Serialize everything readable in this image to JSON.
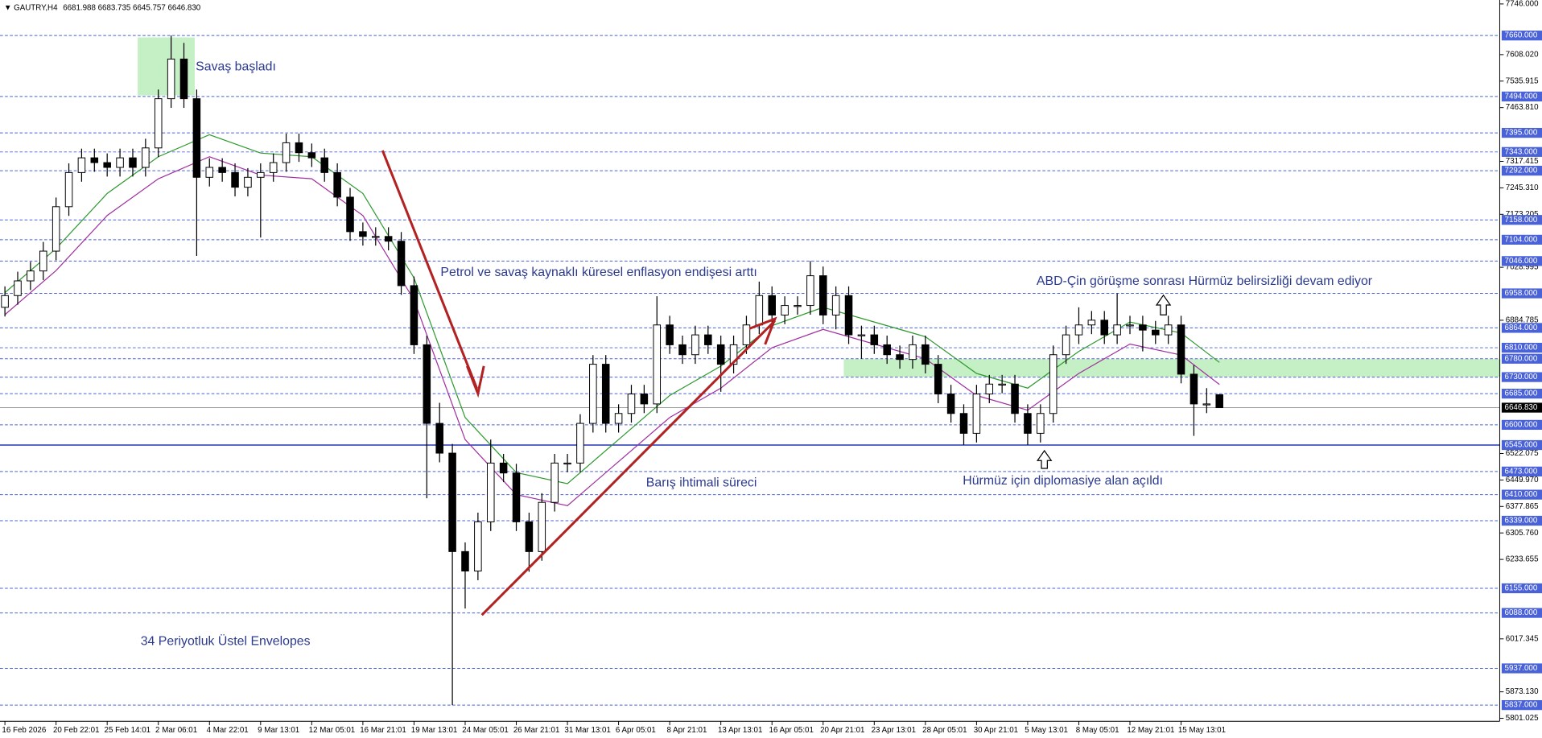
{
  "chart_data": {
    "type": "candlestick",
    "title": "GAUTRY,H4",
    "header_values": "6681.988 6683.735 6645.757 6646.830",
    "categories": [
      "16 Feb 2026",
      null,
      null,
      null,
      "20 Feb 22:01",
      null,
      null,
      null,
      "25 Feb 14:01",
      null,
      null,
      null,
      "2 Mar 06:01",
      null,
      null,
      null,
      "4 Mar 22:01",
      null,
      null,
      null,
      "9 Mar 13:01",
      null,
      null,
      null,
      "12 Mar 05:01",
      null,
      null,
      null,
      "16 Mar 21:01",
      null,
      null,
      null,
      "19 Mar 13:01",
      null,
      null,
      null,
      "24 Mar 05:01",
      null,
      null,
      null,
      "26 Mar 21:01",
      null,
      null,
      null,
      "31 Mar 13:01",
      null,
      null,
      null,
      "6 Apr 05:01",
      null,
      null,
      null,
      "8 Apr 21:01",
      null,
      null,
      null,
      "13 Apr 13:01",
      null,
      null,
      null,
      "16 Apr 05:01",
      null,
      null,
      null,
      "20 Apr 21:01",
      null,
      null,
      null,
      "23 Apr 13:01",
      null,
      null,
      null,
      "28 Apr 05:01",
      null,
      null,
      null,
      "30 Apr 21:01",
      null,
      null,
      null,
      "5 May 13:01",
      null,
      null,
      null,
      "8 May 05:01",
      null,
      null,
      null,
      "12 May 21:01",
      null,
      null,
      null,
      "15 May 13:01",
      null,
      null,
      null
    ],
    "open": [
      6920,
      6952,
      6992,
      7019,
      7073,
      7194,
      7287,
      7327,
      7314,
      7301,
      7327,
      7301,
      7354,
      7488,
      7596,
      7488,
      7274,
      7301,
      7287,
      7247,
      7274,
      7287,
      7314,
      7368,
      7341,
      7327,
      7287,
      7220,
      7126,
      7113,
      7113,
      7100,
      6979,
      6818,
      6604,
      6523,
      6255,
      6202,
      6336,
      6496,
      6469,
      6336,
      6255,
      6389,
      6496,
      6496,
      6604,
      6765,
      6604,
      6631,
      6684,
      6657,
      6872,
      6818,
      6791,
      6845,
      6818,
      6765,
      6818,
      6872,
      6952,
      6899,
      6925,
      6925,
      7006,
      6899,
      6952,
      6845,
      6845,
      6818,
      6791,
      6778,
      6818,
      6765,
      6684,
      6631,
      6577,
      6684,
      6711,
      6711,
      6631,
      6577,
      6631,
      6791,
      6845,
      6872,
      6885,
      6845,
      6872,
      6872,
      6858,
      6845,
      6872,
      6738,
      6657,
      6681.988
    ],
    "high": [
      6977,
      7017,
      7044,
      7098,
      7219,
      7312,
      7352,
      7352,
      7339,
      7352,
      7352,
      7379,
      7513,
      7660,
      7640,
      7513,
      7326,
      7326,
      7312,
      7299,
      7312,
      7339,
      7393,
      7393,
      7366,
      7352,
      7312,
      7245,
      7151,
      7138,
      7138,
      7125,
      7004,
      6843,
      6660,
      6548,
      6280,
      6361,
      6560,
      6521,
      6494,
      6361,
      6414,
      6521,
      6521,
      6629,
      6790,
      6790,
      6656,
      6709,
      6709,
      6950,
      6897,
      6843,
      6870,
      6870,
      6843,
      6843,
      6897,
      6990,
      6977,
      6950,
      6950,
      7046,
      7031,
      6977,
      6977,
      6870,
      6870,
      6843,
      6816,
      6843,
      6843,
      6790,
      6709,
      6656,
      6709,
      6736,
      6736,
      6736,
      6656,
      6656,
      6816,
      6870,
      6920,
      6910,
      6910,
      6958,
      6897,
      6897,
      6883,
      6897,
      6897,
      6763,
      6700,
      6683.735
    ],
    "low": [
      6895,
      6927,
      6967,
      6994,
      7048,
      7169,
      7262,
      7289,
      7276,
      7276,
      7276,
      7276,
      7329,
      7463,
      7463,
      7060,
      7249,
      7262,
      7222,
      7222,
      7110,
      7262,
      7289,
      7316,
      7302,
      7262,
      7195,
      7101,
      7088,
      7088,
      7075,
      6954,
      6793,
      6400,
      6498,
      5837,
      6100,
      6177,
      6311,
      6444,
      6311,
      6200,
      6230,
      6364,
      6471,
      6471,
      6579,
      6579,
      6579,
      6606,
      6632,
      6632,
      6793,
      6766,
      6766,
      6793,
      6690,
      6740,
      6793,
      6847,
      6874,
      6874,
      6900,
      6900,
      6874,
      6860,
      6820,
      6780,
      6793,
      6766,
      6753,
      6753,
      6740,
      6659,
      6606,
      6545,
      6552,
      6659,
      6686,
      6606,
      6545,
      6552,
      6606,
      6766,
      6820,
      6847,
      6820,
      6820,
      6847,
      6800,
      6820,
      6820,
      6713,
      6570,
      6632,
      6645.757
    ],
    "close": [
      6952,
      6992,
      7019,
      7073,
      7194,
      7287,
      7327,
      7314,
      7301,
      7327,
      7301,
      7354,
      7488,
      7596,
      7488,
      7274,
      7301,
      7287,
      7247,
      7274,
      7287,
      7314,
      7368,
      7341,
      7327,
      7287,
      7220,
      7126,
      7113,
      7113,
      7100,
      6979,
      6818,
      6604,
      6523,
      6255,
      6202,
      6336,
      6496,
      6469,
      6336,
      6255,
      6389,
      6496,
      6496,
      6604,
      6765,
      6604,
      6631,
      6684,
      6657,
      6872,
      6818,
      6791,
      6845,
      6818,
      6765,
      6818,
      6872,
      6952,
      6899,
      6925,
      6925,
      7006,
      6899,
      6952,
      6845,
      6845,
      6818,
      6791,
      6778,
      6818,
      6765,
      6684,
      6631,
      6577,
      6684,
      6711,
      6711,
      6631,
      6577,
      6631,
      6791,
      6845,
      6872,
      6885,
      6845,
      6872,
      6872,
      6858,
      6845,
      6872,
      6738,
      6657,
      6657,
      6646.83
    ],
    "envelopes": [
      {
        "color": "#2f9a2f",
        "x": [
          0,
          4,
          8,
          12,
          16,
          20,
          24,
          28,
          32,
          36,
          40,
          44,
          48,
          52,
          56,
          60,
          64,
          68,
          72,
          76,
          80,
          84,
          88,
          92,
          95
        ],
        "values": [
          6960,
          7080,
          7230,
          7330,
          7390,
          7340,
          7330,
          7230,
          7000,
          6620,
          6470,
          6440,
          6560,
          6680,
          6760,
          6870,
          6920,
          6880,
          6840,
          6740,
          6700,
          6800,
          6880,
          6850,
          6770
        ]
      },
      {
        "color": "#a030a0",
        "x": [
          0,
          4,
          8,
          12,
          16,
          20,
          24,
          28,
          32,
          36,
          40,
          44,
          48,
          52,
          56,
          60,
          64,
          68,
          72,
          76,
          80,
          84,
          88,
          92,
          95
        ],
        "values": [
          6900,
          7020,
          7170,
          7270,
          7330,
          7280,
          7270,
          7170,
          6940,
          6560,
          6410,
          6380,
          6500,
          6620,
          6700,
          6810,
          6860,
          6820,
          6780,
          6680,
          6640,
          6740,
          6820,
          6790,
          6710
        ]
      }
    ],
    "ylim": [
      5801.025,
      7746
    ],
    "yticks": [
      {
        "value": 7746,
        "label": "7746.000"
      },
      {
        "value": 7608.02,
        "label": "7608.020"
      },
      {
        "value": 7535.915,
        "label": "7535.915"
      },
      {
        "value": 7463.81,
        "label": "7463.810"
      },
      {
        "value": 7317.415,
        "label": "7317.415"
      },
      {
        "value": 7245.31,
        "label": "7245.310"
      },
      {
        "value": 7173.205,
        "label": "7173.205"
      },
      {
        "value": 7028.995,
        "label": "7028.995"
      },
      {
        "value": 6884.785,
        "label": "6884.785"
      },
      {
        "value": 6522.075,
        "label": "6522.075"
      },
      {
        "value": 6449.97,
        "label": "6449.970"
      },
      {
        "value": 6377.865,
        "label": "6377.865"
      },
      {
        "value": 6305.76,
        "label": "6305.760"
      },
      {
        "value": 6233.655,
        "label": "6233.655"
      },
      {
        "value": 6017.345,
        "label": "6017.345"
      },
      {
        "value": 5873.13,
        "label": "5873.130"
      },
      {
        "value": 5801.025,
        "label": "5801.025"
      }
    ],
    "levels": [
      {
        "value": 7660,
        "label": "7660.000"
      },
      {
        "value": 7494,
        "label": "7494.000"
      },
      {
        "value": 7395,
        "label": "7395.000"
      },
      {
        "value": 7343,
        "label": "7343.000"
      },
      {
        "value": 7292,
        "label": "7292.000"
      },
      {
        "value": 7158,
        "label": "7158.000"
      },
      {
        "value": 7104,
        "label": "7104.000"
      },
      {
        "value": 7046,
        "label": "7046.000"
      },
      {
        "value": 6958,
        "label": "6958.000"
      },
      {
        "value": 6864,
        "label": "6864.000"
      },
      {
        "value": 6810,
        "label": "6810.000"
      },
      {
        "value": 6780,
        "label": "6780.000"
      },
      {
        "value": 6730,
        "label": "6730.000"
      },
      {
        "value": 6685,
        "label": "6685.000"
      },
      {
        "value": 6600,
        "label": "6600.000"
      },
      {
        "value": 6545,
        "label": "6545.000"
      },
      {
        "value": 6473,
        "label": "6473.000"
      },
      {
        "value": 6410,
        "label": "6410.000"
      },
      {
        "value": 6339,
        "label": "6339.000"
      },
      {
        "value": 6155,
        "label": "6155.000"
      },
      {
        "value": 6088,
        "label": "6088.000"
      },
      {
        "value": 5937,
        "label": "5937.000"
      },
      {
        "value": 5837,
        "label": "5837.000"
      }
    ],
    "solid_level": 6545,
    "current_price": {
      "value": 6646.83,
      "label": "6646.830"
    },
    "annotations": [
      "Savaş başladı",
      "Petrol ve savaş kaynaklı küresel enflasyon endişesi arttı",
      "Barış ihtimali süreci",
      "ABD-Çin görüşme sonrası Hürmüz belirsizliği devam ediyor",
      "Hürmüz için diplomasiye alan açıldı",
      "34 Periyotluk Üstel Envelopes"
    ]
  }
}
